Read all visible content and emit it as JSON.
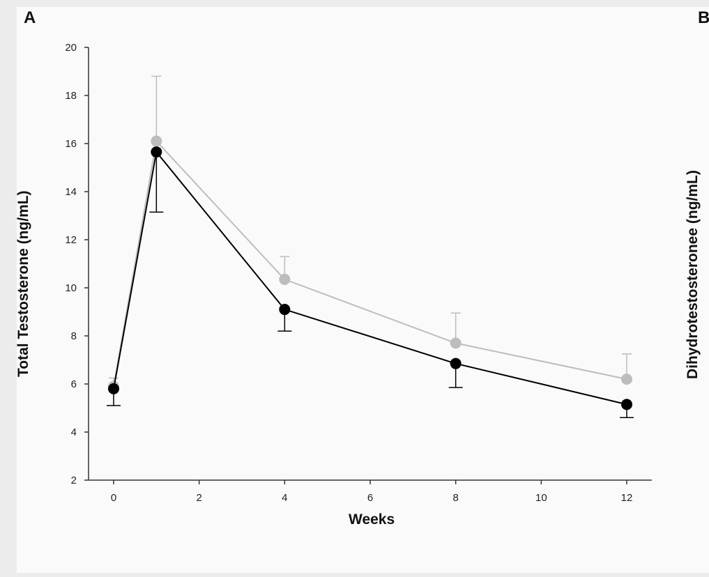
{
  "panels": {
    "left": "A",
    "right": "B"
  },
  "right_ylabel": "Dihydrotestosteronee (ng/mL)",
  "chart_data": {
    "type": "line",
    "xlabel": "Weeks",
    "ylabel": "Total Testosterone (ng/mL)",
    "xlim": [
      0,
      12
    ],
    "ylim": [
      2,
      20
    ],
    "xticks": [
      0,
      2,
      4,
      6,
      8,
      10,
      12
    ],
    "yticks": [
      2,
      4,
      6,
      8,
      10,
      12,
      14,
      16,
      18,
      20
    ],
    "grid": false,
    "legend": "none",
    "x": [
      0,
      1,
      4,
      8,
      12
    ],
    "series": [
      {
        "color": "#bdbdbd",
        "values": [
          5.9,
          16.1,
          10.35,
          7.7,
          6.2
        ],
        "error_up": [
          0.35,
          2.7,
          0.95,
          1.25,
          1.05
        ],
        "error_down": [
          0.0,
          0.0,
          0.0,
          0.0,
          0.0
        ]
      },
      {
        "color": "#000000",
        "values": [
          5.8,
          15.65,
          9.1,
          6.85,
          5.15
        ],
        "error_up": [
          0.0,
          0.0,
          0.0,
          0.0,
          0.0
        ],
        "error_down": [
          0.7,
          2.5,
          0.9,
          1.0,
          0.55
        ]
      }
    ]
  }
}
